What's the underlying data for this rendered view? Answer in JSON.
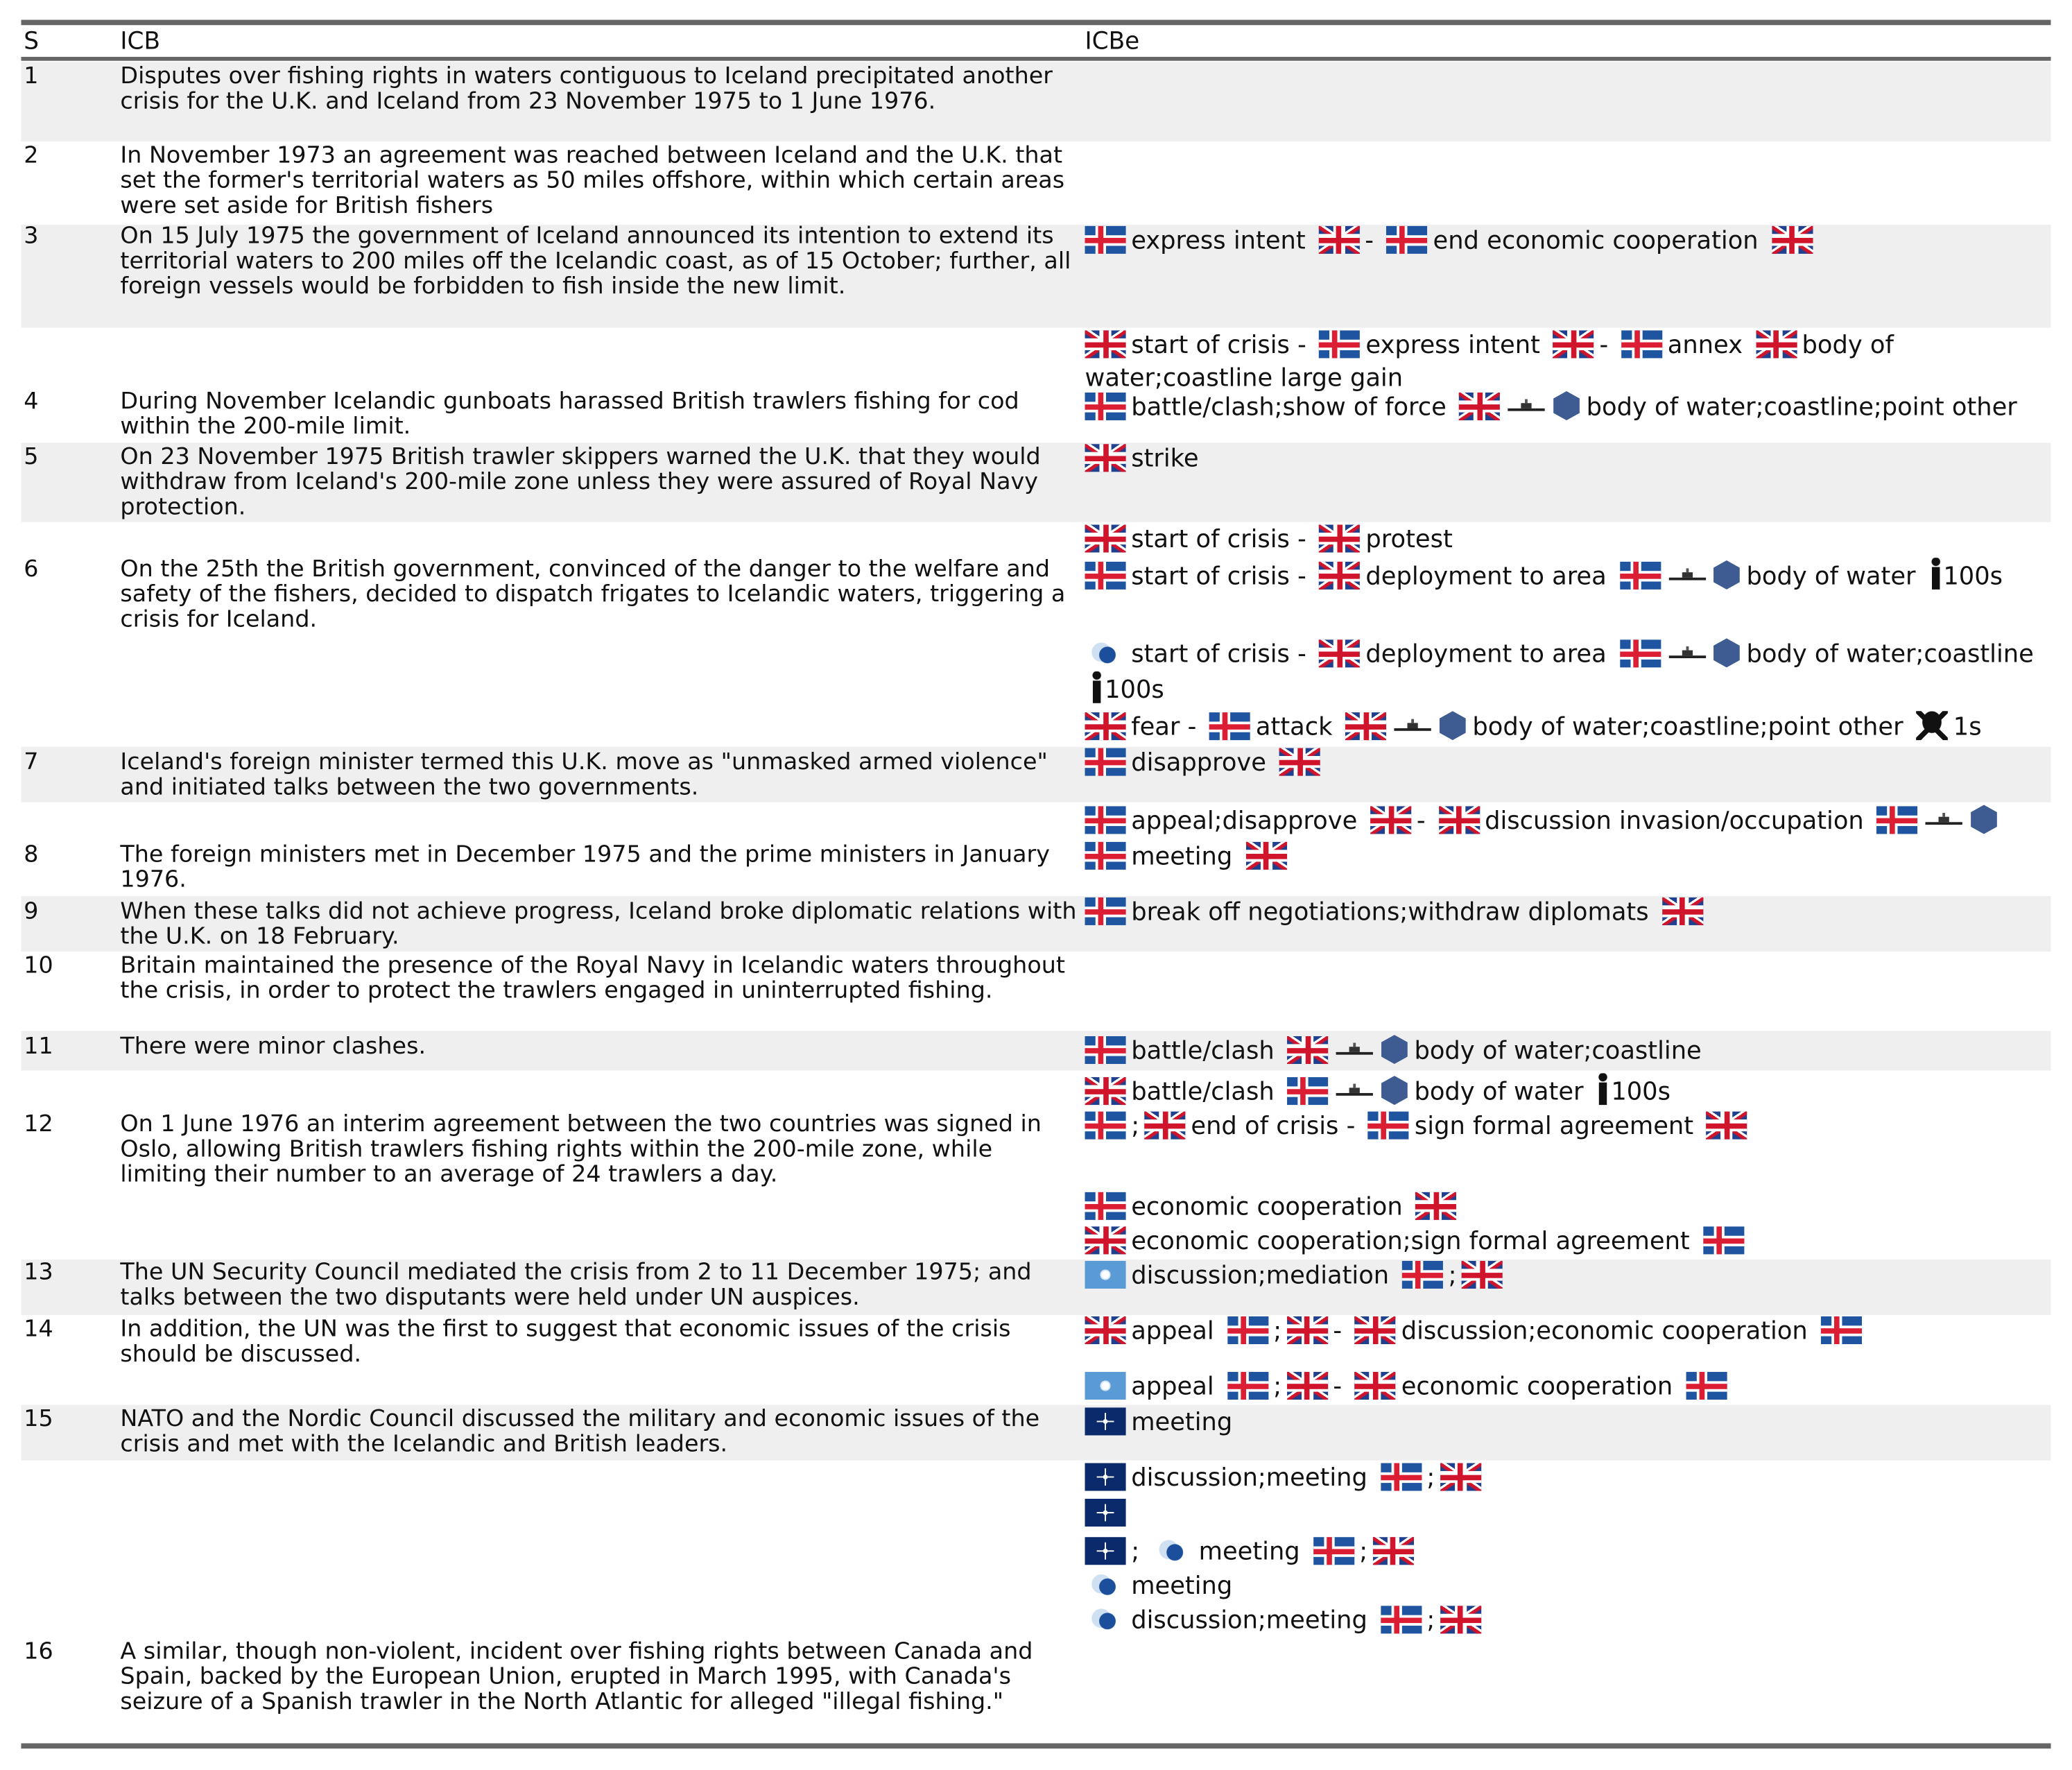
{
  "table": {
    "headers": [
      "S",
      "ICB",
      "ICBe"
    ],
    "rows": [
      {
        "s": "1",
        "icb": "Disputes over fishing rights in waters contiguous to Iceland precipitated another crisis for the U.K. and Iceland from 23 November 1975 to 1 June 1976."
      },
      {
        "s": "2",
        "icb": "In November 1973 an agreement was reached between Iceland and the U.K. that set the former's territorial waters as 50 miles offshore, within which certain areas were set aside for British fishers"
      },
      {
        "s": "3",
        "icb": "On 15 July 1975 the government of Iceland announced its intention to extend its territorial waters to 200 miles off the Icelandic coast, as of 15 October; further, all foreign vessels would be forbidden to fish inside the new limit.",
        "events": [
          [
            "express intent",
            "-",
            "end economic cooperation"
          ]
        ]
      },
      {
        "s": "4",
        "icb": "During November Icelandic gunboats harassed British trawlers fishing for cod within the 200-mile limit.",
        "events": [
          [
            "start of crisis",
            "-",
            "express intent",
            "-",
            "annex",
            "body of water;coastline large gain"
          ],
          [
            "battle/clash;show of force",
            "body of water;coastline;point other"
          ]
        ]
      },
      {
        "s": "5",
        "icb": "On 23 November 1975 British trawler skippers warned the U.K. that they would withdraw from Iceland's 200-mile zone unless they were assured of Royal Navy protection.",
        "events": [
          [
            "strike"
          ]
        ]
      },
      {
        "s": "6",
        "icb": "On the 25th the British government, convinced of the danger to the welfare and safety of the fishers, decided to dispatch frigates to Icelandic waters, triggering a crisis for Iceland.",
        "events": [
          [
            "start of crisis",
            "-",
            "protest"
          ],
          [
            "start of crisis",
            "-",
            "deployment to area",
            "body of water",
            "100s"
          ],
          [
            "start of crisis",
            "-",
            "deployment to area",
            "body of water;coastline",
            "100s"
          ],
          [
            "fear",
            "-",
            "attack",
            "body of water;coastline;point other",
            "1s"
          ]
        ]
      },
      {
        "s": "7",
        "icb": "Iceland's foreign minister termed this U.K. move as \"unmasked armed violence\" and initiated talks between the two governments.",
        "events": [
          [
            "disapprove"
          ]
        ]
      },
      {
        "s": "8",
        "icb": "The foreign ministers met in December 1975 and the prime ministers in January 1976.",
        "events": [
          [
            "appeal;disapprove",
            "-",
            "discussion invasion/occupation"
          ],
          [
            "meeting"
          ]
        ]
      },
      {
        "s": "9",
        "icb": "When these talks did not achieve progress, Iceland broke diplomatic relations with the U.K. on 18 February.",
        "events": [
          [
            "break off negotiations;withdraw diplomats"
          ]
        ]
      },
      {
        "s": "10",
        "icb": "Britain maintained the presence of the Royal Navy in Icelandic waters throughout the crisis, in order to protect the trawlers engaged in uninterrupted fishing."
      },
      {
        "s": "11",
        "icb": "There were minor clashes.",
        "events": [
          [
            "battle/clash",
            "body of water;coastline"
          ]
        ]
      },
      {
        "s": "12",
        "icb": "On 1 June 1976 an interim agreement between the two countries was signed in Oslo, allowing British trawlers fishing rights within the 200-mile zone, while limiting their number to an average of 24 trawlers a day.",
        "events": [
          [
            "battle/clash",
            "body of water",
            "100s"
          ],
          [
            ";",
            "end of crisis",
            "-",
            "sign formal agreement"
          ],
          [
            "economic cooperation"
          ],
          [
            "economic cooperation;sign formal agreement"
          ]
        ]
      },
      {
        "s": "13",
        "icb": "The UN Security Council mediated the crisis from 2 to 11 December 1975; and talks between the two disputants were held under UN auspices.",
        "events": [
          [
            "discussion;mediation",
            ";"
          ]
        ]
      },
      {
        "s": "14",
        "icb": "In addition, the UN was the first to suggest that economic issues of the crisis should be discussed.",
        "events": [
          [
            "appeal",
            ";",
            "-",
            "discussion;economic cooperation"
          ],
          [
            "appeal",
            ";",
            "-",
            "economic cooperation"
          ]
        ]
      },
      {
        "s": "15",
        "icb": "NATO and the Nordic Council discussed the military and economic issues of the crisis and met with the Icelandic and British leaders.",
        "events": [
          [
            "meeting"
          ]
        ]
      },
      {
        "s": "16",
        "icb": "A similar, though non-violent, incident over fishing rights between Canada and Spain, backed by the European Union, erupted in March 1995, with Canada's seizure of a Spanish trawler in the North Atlantic for alleged \"illegal fishing.\"",
        "events": [
          [
            "discussion;meeting",
            ";"
          ],
          [
            ";",
            "meeting",
            ";"
          ],
          [
            "meeting"
          ],
          [
            "discussion;meeting",
            ";"
          ]
        ]
      }
    ]
  }
}
